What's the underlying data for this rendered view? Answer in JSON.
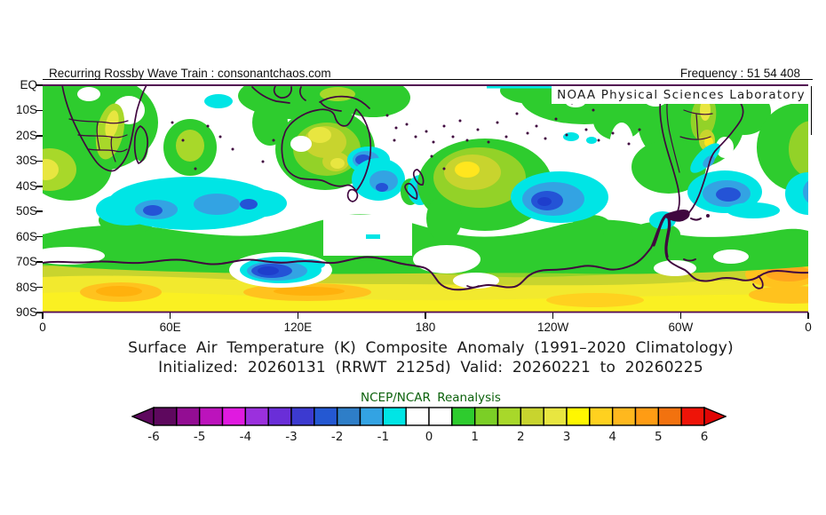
{
  "header": {
    "watermark": "Recurring Rossby Wave Train : consonantchaos.com",
    "frequency_label": "Frequency : 51 54 408",
    "agency_label": "NOAA Physical Sciences Laboratory"
  },
  "titles": {
    "line1": "Surface Air Temperature (K) Composite Anomaly (1991–2020 Climatology)",
    "line2": "Initialized: 20260131 (RRWT 2125d) Valid: 20260221 to 20260225",
    "dataset": "NCEP/NCAR Reanalysis"
  },
  "map": {
    "lat_labels": [
      "EQ",
      "10S",
      "20S",
      "30S",
      "40S",
      "50S",
      "60S",
      "70S",
      "80S",
      "90S"
    ],
    "lon_labels": [
      "0",
      "60E",
      "120E",
      "180",
      "120W",
      "60W",
      "0"
    ]
  },
  "colorbar": {
    "tick_labels": [
      "-6",
      "-5",
      "-4",
      "-3",
      "-2",
      "-1",
      "0",
      "1",
      "2",
      "3",
      "4",
      "5",
      "6"
    ],
    "cell_colors": [
      "#5e085e",
      "#930d93",
      "#bc13bc",
      "#e01ae0",
      "#9b30dd",
      "#6a2ed8",
      "#3c3ad0",
      "#2458d2",
      "#2e7ec8",
      "#33a3e3",
      "#00e5e5",
      "#ffffff",
      "#ffffff",
      "#2ecc2e",
      "#7bcf26",
      "#a8d82a",
      "#c8d42e",
      "#e8e640",
      "#fff700",
      "#ffd11f",
      "#ffb81e",
      "#ff9c14",
      "#f2720f",
      "#ee1408"
    ],
    "left_arrow_color": "#5e085e",
    "right_arrow_color": "#e00505"
  },
  "chart_data": {
    "type": "heatmap",
    "variable": "Surface Air Temperature composite anomaly",
    "units": "K",
    "climatology": "1991-2020",
    "initialized": "20260131",
    "valid_range": "20260221 to 20260225",
    "domain": "Southern Hemisphere, EQ to 90S, longitude 0 eastward around to 0",
    "x_ticks": [
      "0",
      "60E",
      "120E",
      "180",
      "120W",
      "60W",
      "0"
    ],
    "y_ticks": [
      "EQ",
      "10S",
      "20S",
      "30S",
      "40S",
      "50S",
      "60S",
      "70S",
      "80S",
      "90S"
    ],
    "colorbar": {
      "min": -6,
      "max": 6,
      "cell_width": 0.5,
      "tick_interval": 1,
      "tick_labels": [
        "-6",
        "-5",
        "-4",
        "-3",
        "-2",
        "-1",
        "0",
        "1",
        "2",
        "3",
        "4",
        "5",
        "6"
      ],
      "colors": [
        "#5e085e",
        "#930d93",
        "#bc13bc",
        "#e01ae0",
        "#9b30dd",
        "#6a2ed8",
        "#3c3ad0",
        "#2458d2",
        "#2e7ec8",
        "#33a3e3",
        "#00e5e5",
        "#ffffff",
        "#ffffff",
        "#2ecc2e",
        "#7bcf26",
        "#a8d82a",
        "#c8d42e",
        "#e8e640",
        "#fff700",
        "#ffd11f",
        "#ffb81e",
        "#ff9c14",
        "#f2720f",
        "#ee1408"
      ]
    },
    "anomaly_centers": [
      {
        "location": "southern Indian Ocean ~40-55S, 40-110E",
        "sign": "cold",
        "peak_K": -2.5
      },
      {
        "location": "eastern interior Australia ~25-33S, ~145E",
        "sign": "cold",
        "peak_K": -2.5
      },
      {
        "location": "Tasman Sea and east of New Zealand ~35-45S",
        "sign": "cold",
        "peak_K": -2
      },
      {
        "location": "southeast Pacific ~40-55S, 135-110W",
        "sign": "cold",
        "peak_K": -3
      },
      {
        "location": "southwest Atlantic ~40-50S, 45-25W",
        "sign": "cold",
        "peak_K": -2.5
      },
      {
        "location": "coastal East Antarctica ~70-76S, 95-130E",
        "sign": "cold",
        "peak_K": -3.5
      },
      {
        "location": "southwestern Africa interior",
        "sign": "warm",
        "peak_K": 3
      },
      {
        "location": "central Australia",
        "sign": "warm",
        "peak_K": 3
      },
      {
        "location": "South Pacific east of New Zealand ~25-45S, 175E-140W",
        "sign": "warm",
        "peak_K": 3.5
      },
      {
        "location": "southeastern South America ~20-35S",
        "sign": "warm",
        "peak_K": 3
      },
      {
        "location": "Antarctic interior 72-90S circumpolar band",
        "sign": "warm",
        "peak_K": 4.5
      },
      {
        "location": "scattered tropical patches 0-20S",
        "sign": "warm",
        "peak_K": 1.5
      }
    ]
  }
}
